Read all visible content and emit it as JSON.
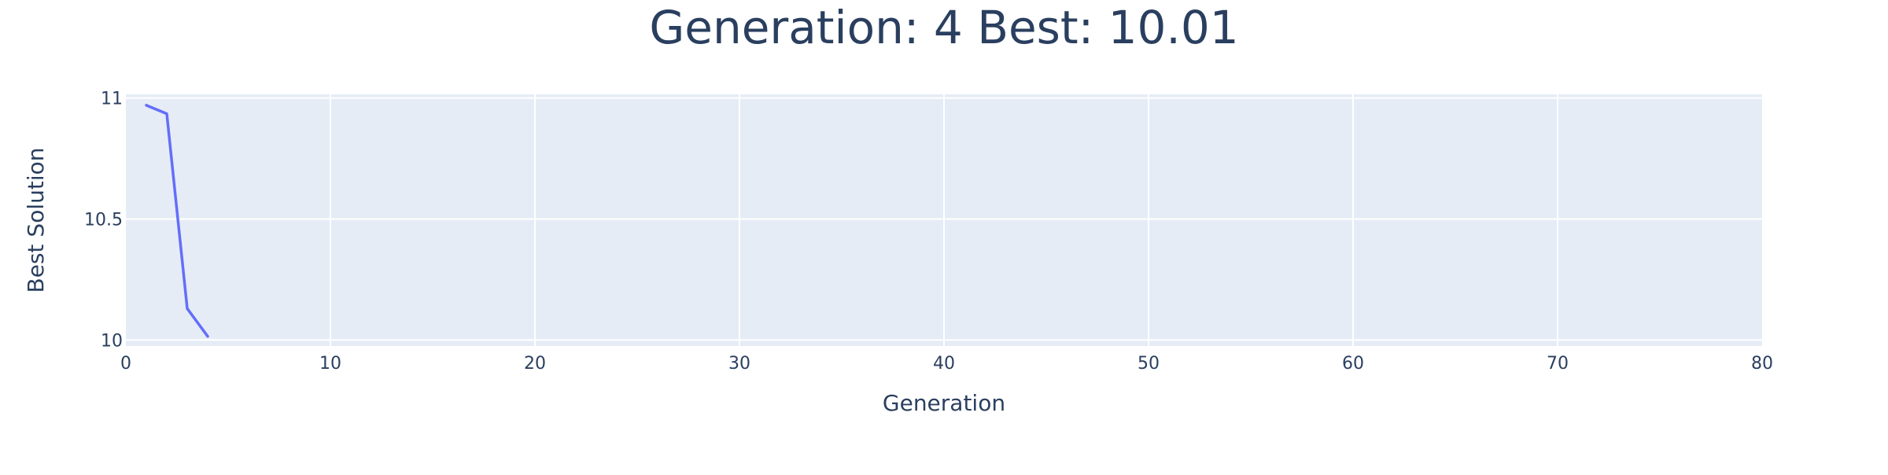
{
  "chart_data": {
    "type": "line",
    "title": "Generation: 4 Best: 10.01",
    "xlabel": "Generation",
    "ylabel": "Best Solution",
    "xlim": [
      0,
      80
    ],
    "ylim": [
      9.975,
      11.015
    ],
    "xticks": [
      0,
      10,
      20,
      30,
      40,
      50,
      60,
      70,
      80
    ],
    "xtick_labels": [
      "0",
      "10",
      "20",
      "30",
      "40",
      "50",
      "60",
      "70",
      "80"
    ],
    "yticks": [
      10,
      10.5,
      11
    ],
    "ytick_labels": [
      "10",
      "10.5",
      "11"
    ],
    "grid": true,
    "legend": "none",
    "series": [
      {
        "x": [
          1,
          2,
          3,
          4
        ],
        "y": [
          10.97,
          10.935,
          10.13,
          10.015
        ]
      }
    ],
    "colors": {
      "line": "#636efa",
      "plot_bg": "#e5ecf6",
      "grid": "#ffffff",
      "text": "#2a3f5f"
    }
  }
}
